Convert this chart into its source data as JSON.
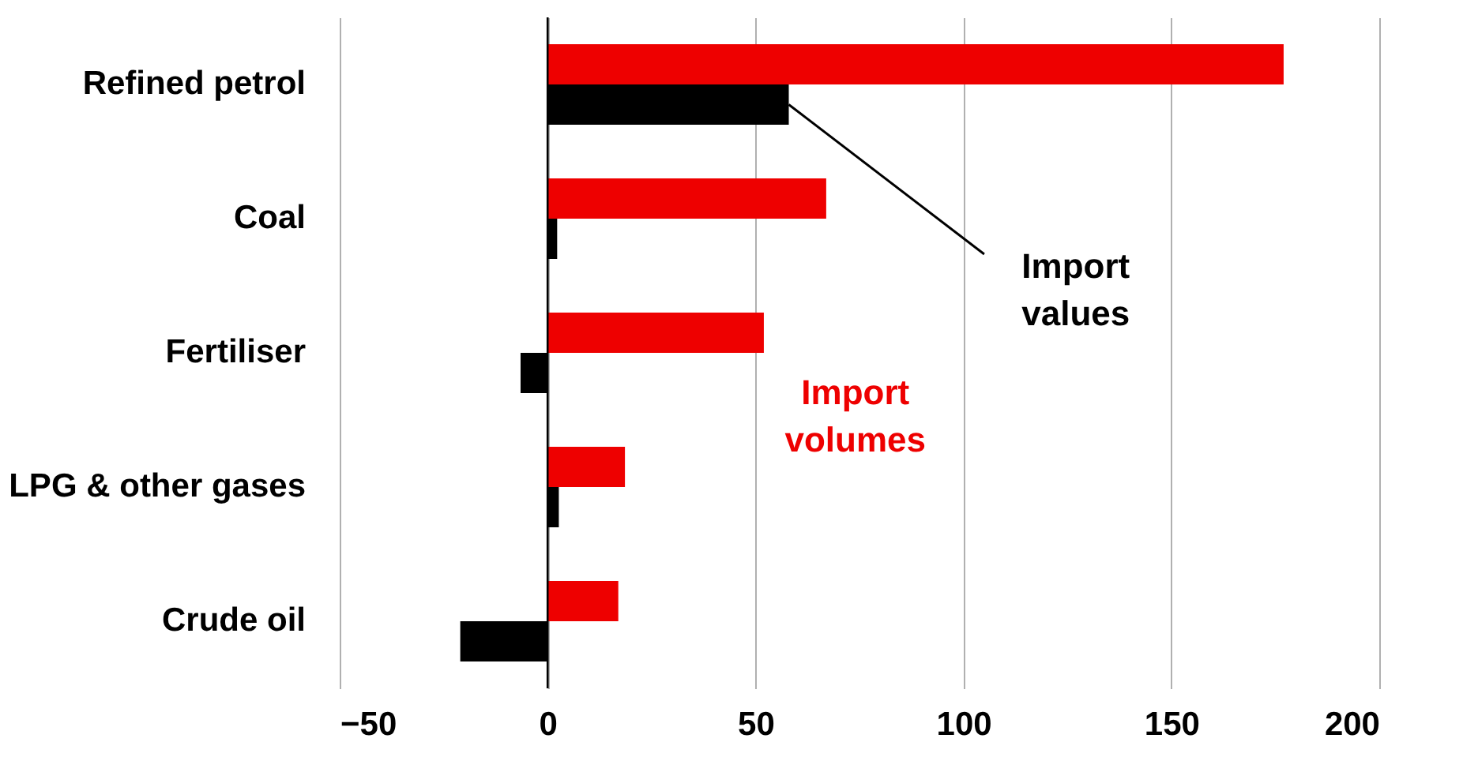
{
  "chart_data": {
    "type": "bar",
    "orientation": "horizontal",
    "categories": [
      "Refined petrol",
      "Coal",
      "Fertiliser",
      "LPG & other gases",
      "Crude oil"
    ],
    "series": [
      {
        "name": "Import volumes",
        "color": "#ee0000",
        "values": [
          177,
          67,
          52,
          18.6,
          17
        ]
      },
      {
        "name": "Import values",
        "color": "#000000",
        "values": [
          58,
          2.3,
          -6.5,
          2.7,
          -21
        ]
      }
    ],
    "xlim": [
      -50,
      200
    ],
    "xticks": [
      -50,
      0,
      50,
      100,
      150,
      200
    ],
    "grid": "x",
    "legend": false,
    "ref_lines": [
      {
        "axis": "x",
        "value": 0,
        "color": "#000000"
      }
    ]
  }
}
